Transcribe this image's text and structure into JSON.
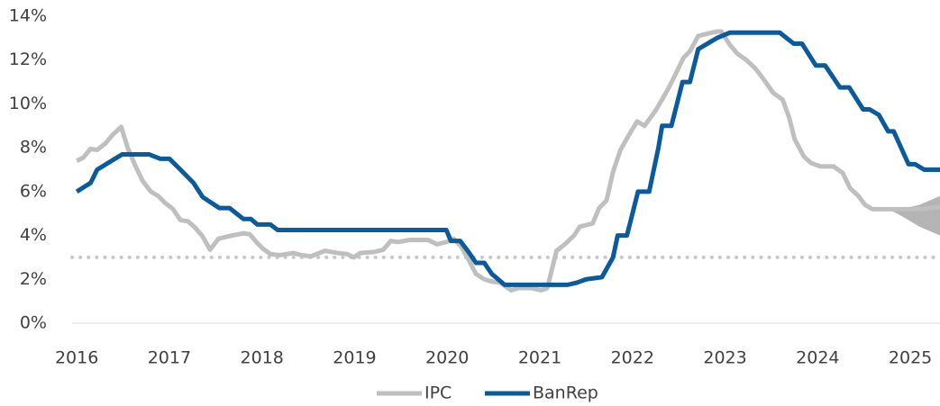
{
  "chart_data": {
    "type": "line",
    "xlim": [
      2015.95,
      2025.32
    ],
    "xticks": [
      2016,
      2017,
      2018,
      2019,
      2020,
      2021,
      2022,
      2023,
      2024,
      2025
    ],
    "ylim": [
      0,
      14
    ],
    "yticks": [
      {
        "value": 0,
        "label": "0%"
      },
      {
        "value": 2,
        "label": "2%"
      },
      {
        "value": 4,
        "label": "4%"
      },
      {
        "value": 6,
        "label": "6%"
      },
      {
        "value": 8,
        "label": "8%"
      },
      {
        "value": 10,
        "label": "10%"
      },
      {
        "value": 12,
        "label": "12%"
      },
      {
        "value": 14,
        "label": "14%"
      }
    ],
    "reference_line": {
      "value": 3,
      "color": "#c8c8c8"
    },
    "band": {
      "color": "#b4b4b4",
      "x": [
        2024.76,
        2024.9,
        2025.1,
        2025.32
      ],
      "lower": [
        5.2,
        4.9,
        4.4,
        4.0
      ],
      "upper": [
        5.2,
        5.2,
        5.4,
        5.8
      ]
    },
    "legend": "bottom",
    "series": [
      {
        "name": "IPC",
        "color": "#bfbfbf",
        "x": [
          2016.0,
          2016.07,
          2016.15,
          2016.22,
          2016.31,
          2016.39,
          2016.48,
          2016.55,
          2016.63,
          2016.71,
          2016.8,
          2016.88,
          2016.95,
          2017.04,
          2017.12,
          2017.2,
          2017.28,
          2017.36,
          2017.44,
          2017.53,
          2017.68,
          2017.8,
          2017.87,
          2017.95,
          2018.01,
          2018.09,
          2018.19,
          2018.34,
          2018.43,
          2018.53,
          2018.68,
          2018.82,
          2018.92,
          2018.99,
          2019.06,
          2019.21,
          2019.31,
          2019.39,
          2019.47,
          2019.6,
          2019.79,
          2019.89,
          2019.99,
          2020.07,
          2020.15,
          2020.23,
          2020.31,
          2020.4,
          2020.48,
          2020.57,
          2020.69,
          2020.77,
          2020.91,
          2021.01,
          2021.08,
          2021.18,
          2021.27,
          2021.37,
          2021.43,
          2021.57,
          2021.64,
          2021.72,
          2021.79,
          2021.87,
          2021.95,
          2022.05,
          2022.13,
          2022.25,
          2022.32,
          2022.4,
          2022.47,
          2022.55,
          2022.62,
          2022.71,
          2022.81,
          2022.91,
          2022.96,
          2023.05,
          2023.13,
          2023.23,
          2023.33,
          2023.42,
          2023.52,
          2023.62,
          2023.69,
          2023.75,
          2023.85,
          2023.93,
          2024.03,
          2024.17,
          2024.27,
          2024.35,
          2024.44,
          2024.51,
          2024.59,
          2024.9,
          2025.1,
          2025.32
        ],
        "values": [
          7.4,
          7.55,
          7.95,
          7.9,
          8.2,
          8.6,
          8.95,
          8.0,
          7.2,
          6.5,
          6.0,
          5.8,
          5.5,
          5.2,
          4.7,
          4.65,
          4.35,
          3.95,
          3.35,
          3.85,
          4.0,
          4.1,
          4.05,
          3.65,
          3.4,
          3.15,
          3.1,
          3.2,
          3.1,
          3.05,
          3.3,
          3.2,
          3.15,
          3.0,
          3.2,
          3.25,
          3.35,
          3.75,
          3.7,
          3.8,
          3.8,
          3.6,
          3.7,
          3.85,
          3.5,
          2.9,
          2.25,
          2.0,
          1.9,
          1.85,
          1.5,
          1.6,
          1.6,
          1.5,
          1.6,
          3.3,
          3.6,
          4.0,
          4.4,
          4.55,
          5.25,
          5.6,
          6.9,
          7.9,
          8.5,
          9.2,
          9.0,
          9.7,
          10.2,
          10.8,
          11.4,
          12.1,
          12.4,
          13.1,
          13.2,
          13.3,
          13.3,
          12.7,
          12.3,
          12.0,
          11.6,
          11.1,
          10.5,
          10.2,
          9.4,
          8.4,
          7.6,
          7.3,
          7.15,
          7.15,
          6.85,
          6.15,
          5.8,
          5.4,
          5.2,
          5.2,
          5.2,
          5.3
        ]
      },
      {
        "name": "BanRep",
        "color": "#0a5a9c",
        "x": [
          2016.0,
          2016.15,
          2016.22,
          2016.49,
          2016.78,
          2016.9,
          2017.0,
          2017.12,
          2017.26,
          2017.36,
          2017.54,
          2017.65,
          2017.8,
          2017.88,
          2017.95,
          2018.09,
          2018.17,
          2019.99,
          2020.04,
          2020.14,
          2020.23,
          2020.31,
          2020.4,
          2020.48,
          2020.62,
          2021.3,
          2021.4,
          2021.5,
          2021.67,
          2021.79,
          2021.84,
          2021.94,
          2022.06,
          2022.18,
          2022.28,
          2022.32,
          2022.42,
          2022.54,
          2022.62,
          2022.71,
          2022.81,
          2022.91,
          2023.05,
          2023.59,
          2023.74,
          2023.83,
          2023.98,
          2024.08,
          2024.24,
          2024.34,
          2024.49,
          2024.56,
          2024.66,
          2024.76,
          2024.82,
          2024.98,
          2025.05,
          2025.15,
          2025.32
        ],
        "values": [
          6.0,
          6.4,
          7.0,
          7.7,
          7.7,
          7.5,
          7.5,
          7.0,
          6.4,
          5.75,
          5.25,
          5.25,
          4.75,
          4.75,
          4.5,
          4.5,
          4.25,
          4.25,
          3.75,
          3.75,
          3.25,
          2.75,
          2.75,
          2.25,
          1.75,
          1.75,
          1.85,
          2.0,
          2.1,
          3.0,
          4.0,
          4.0,
          6.0,
          6.0,
          8.0,
          9.0,
          9.0,
          11.0,
          11.0,
          12.5,
          12.75,
          13.0,
          13.25,
          13.25,
          12.75,
          12.75,
          11.75,
          11.75,
          10.75,
          10.75,
          9.75,
          9.75,
          9.5,
          8.75,
          8.75,
          7.25,
          7.25,
          7.0,
          7.0
        ]
      }
    ]
  }
}
